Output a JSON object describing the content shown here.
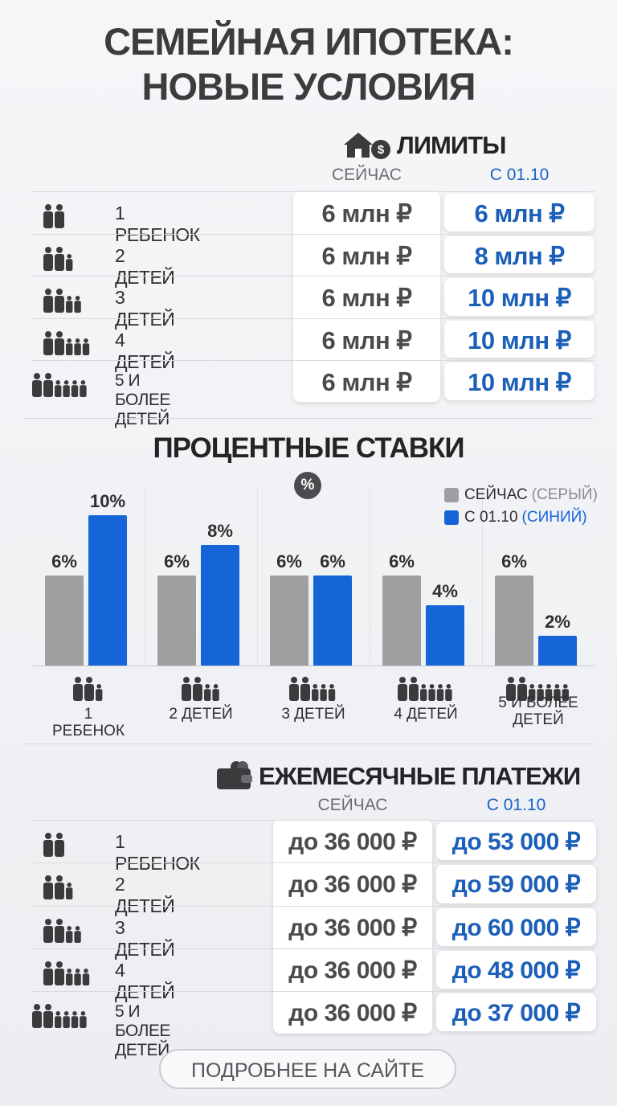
{
  "title_lines": [
    "СЕМЕЙНАЯ ИПОТЕКА:",
    "НОВЫЕ УСЛОВИЯ"
  ],
  "limits": {
    "title": "ЛИМИТЫ",
    "columns": [
      "СЕЙЧАС",
      "С 01.10"
    ],
    "rows": [
      [
        "1 РЕБЕНОК",
        "6 млн ₽",
        "6 млн ₽"
      ],
      [
        "2 ДЕТЕЙ",
        "6 млн ₽",
        "8 млн ₽"
      ],
      [
        "3 ДЕТЕЙ",
        "6 млн ₽",
        "10 млн ₽"
      ],
      [
        "4 ДЕТЕЙ",
        "6 млн ₽",
        "10 млн ₽"
      ],
      [
        "5 И БОЛЕЕ ДЕТЕЙ",
        "6 млн ₽",
        "10 млн ₽"
      ]
    ]
  },
  "chart_data": {
    "type": "bar",
    "title": "ПРОЦЕНТНЫЕ СТАВКИ",
    "badge": "%",
    "categories": [
      "1 РЕБЕНОК",
      "2 ДЕТЕЙ",
      "3 ДЕТЕЙ",
      "4 ДЕТЕЙ",
      "5 И БОЛЕЕ ДЕТЕЙ"
    ],
    "series": [
      {
        "name": "СЕЙЧАС",
        "legend_note": "(СЕРЫЙ)",
        "color": "#9e9fa1",
        "values": [
          6,
          6,
          6,
          6,
          6
        ],
        "value_labels": [
          "6%",
          "6%",
          "6%",
          "6%",
          "6%"
        ]
      },
      {
        "name": "С 01.10",
        "legend_note": "(СИНИЙ)",
        "color": "#1565d8",
        "values": [
          10,
          8,
          6,
          4,
          2
        ],
        "value_labels": [
          "10%",
          "8%",
          "6%",
          "4%",
          "2%"
        ]
      }
    ],
    "ylim": [
      0,
      10
    ],
    "legend": "top-right"
  },
  "payments": {
    "title": "ЕЖЕМЕСЯЧНЫЕ ПЛАТЕЖИ",
    "columns": [
      "СЕЙЧАС",
      "С 01.10"
    ],
    "rows": [
      [
        "1 РЕБЕНОК",
        "до 36 000 ₽",
        "до 53 000 ₽"
      ],
      [
        "2 ДЕТЕЙ",
        "до 36 000 ₽",
        "до 59 000 ₽"
      ],
      [
        "3 ДЕТЕЙ",
        "до 36 000 ₽",
        "до 60 000 ₽"
      ],
      [
        "4 ДЕТЕЙ",
        "до 36 000 ₽",
        "до 48 000 ₽"
      ],
      [
        "5 И БОЛЕЕ ДЕТЕЙ",
        "до 36 000 ₽",
        "до 37 000 ₽"
      ]
    ]
  },
  "button": "ПОДРОБНЕЕ НА САЙТЕ"
}
